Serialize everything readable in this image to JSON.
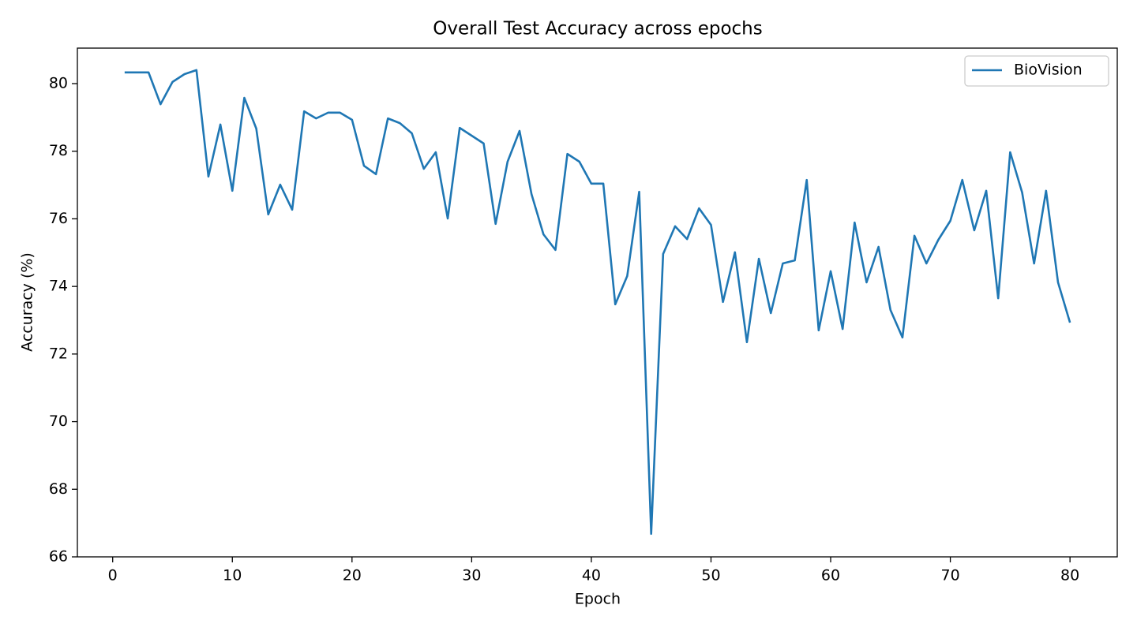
{
  "chart_data": {
    "type": "line",
    "title": "Overall Test Accuracy across epochs",
    "xlabel": "Epoch",
    "ylabel": "Accuracy (%)",
    "x": [
      1,
      2,
      3,
      4,
      5,
      6,
      7,
      8,
      9,
      10,
      11,
      12,
      13,
      14,
      15,
      16,
      17,
      18,
      19,
      20,
      21,
      22,
      23,
      24,
      25,
      26,
      27,
      28,
      29,
      30,
      31,
      32,
      33,
      34,
      35,
      36,
      37,
      38,
      39,
      40,
      41,
      42,
      43,
      44,
      45,
      46,
      47,
      48,
      49,
      50,
      51,
      52,
      53,
      54,
      55,
      56,
      57,
      58,
      59,
      60,
      61,
      62,
      63,
      64,
      65,
      66,
      67,
      68,
      69,
      70,
      71,
      72,
      73,
      74,
      75,
      76,
      77,
      78,
      79,
      80
    ],
    "series": [
      {
        "name": "BioVision",
        "color": "#1f77b4",
        "values": [
          80.33,
          80.33,
          80.33,
          79.39,
          80.05,
          80.28,
          80.4,
          77.25,
          78.79,
          76.83,
          79.58,
          78.67,
          76.13,
          77.01,
          76.27,
          79.18,
          78.97,
          79.14,
          79.14,
          78.93,
          77.57,
          77.32,
          78.97,
          78.83,
          78.53,
          77.48,
          77.97,
          76.01,
          78.69,
          78.46,
          78.23,
          75.85,
          77.69,
          78.6,
          76.73,
          75.54,
          75.08,
          77.92,
          77.69,
          77.04,
          77.04,
          73.47,
          74.31,
          76.8,
          66.68,
          74.96,
          75.78,
          75.4,
          76.31,
          75.82,
          73.54,
          75.01,
          72.35,
          74.82,
          73.21,
          74.68,
          74.77,
          77.15,
          72.7,
          74.45,
          72.74,
          75.89,
          74.12,
          75.17,
          73.3,
          72.49,
          75.5,
          74.68,
          75.38,
          75.94,
          77.15,
          75.66,
          76.83,
          73.65,
          77.97,
          76.78,
          74.68,
          76.83,
          74.12,
          72.93
        ]
      }
    ],
    "xlim": [
      -2.95,
      83.95
    ],
    "xticks": [
      0,
      10,
      20,
      30,
      40,
      50,
      60,
      70,
      80
    ],
    "ylim": [
      66,
      81.05
    ],
    "yticks": [
      66,
      68,
      70,
      72,
      74,
      76,
      78,
      80
    ],
    "legend": "upper right"
  }
}
